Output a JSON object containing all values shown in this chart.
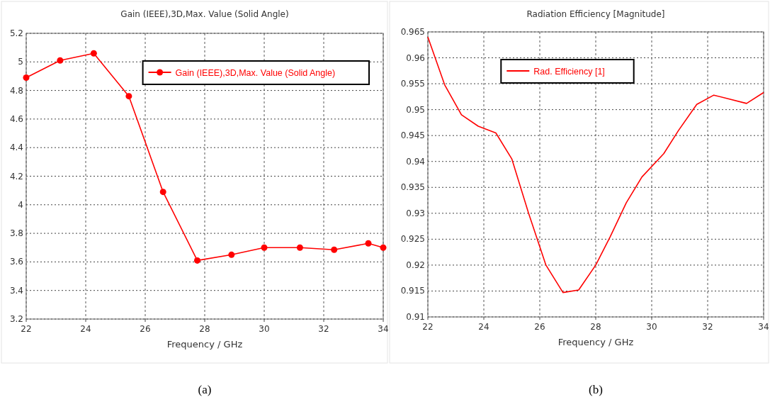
{
  "chart_data": [
    {
      "type": "line",
      "title": "Gain (IEEE),3D,Max. Value (Solid Angle)",
      "xlabel": "Frequency / GHz",
      "annotations": [
        "(a)"
      ],
      "series": [
        {
          "name": "Gain (IEEE),3D,Max. Value (Solid Angle)",
          "color": "#ff0000",
          "x": [
            22,
            23.14,
            24.27,
            25.45,
            26.6,
            27.75,
            28.9,
            30,
            31.2,
            32.35,
            33.5,
            34
          ],
          "values": [
            4.89,
            5.01,
            5.06,
            4.76,
            4.09,
            3.61,
            3.65,
            3.7,
            3.7,
            3.685,
            3.73,
            3.7
          ]
        }
      ],
      "marker": "circle",
      "xlim": [
        22,
        34
      ],
      "xticks": [
        22,
        24,
        26,
        28,
        30,
        32,
        34
      ],
      "ylim": [
        3.2,
        5.2
      ],
      "yticks": [
        3.2,
        3.4,
        3.6,
        3.8,
        4,
        4.2,
        4.4,
        4.6,
        4.8,
        5,
        5.2
      ],
      "grid": true,
      "legend": "top right"
    },
    {
      "type": "line",
      "title": "Radiation Efficiency [Magnitude]",
      "xlabel": "Frequency / GHz",
      "annotations": [
        "(b)"
      ],
      "series": [
        {
          "name": "Rad. Efficiency [1]",
          "color": "#ff0000",
          "x": [
            22,
            22.6,
            23.2,
            23.8,
            24.43,
            25,
            25.6,
            26.22,
            26.83,
            27.39,
            28,
            28.52,
            29.09,
            29.65,
            30.43,
            30.96,
            31.61,
            32.22,
            33.39,
            34
          ],
          "values": [
            0.964,
            0.9548,
            0.949,
            0.9468,
            0.9455,
            0.9405,
            0.93,
            0.92,
            0.9147,
            0.9152,
            0.92,
            0.9255,
            0.932,
            0.937,
            0.9415,
            0.946,
            0.951,
            0.9528,
            0.9512,
            0.9533
          ]
        }
      ],
      "marker": "none",
      "xlim": [
        22,
        34
      ],
      "xticks": [
        22,
        24,
        26,
        28,
        30,
        32,
        34
      ],
      "ylim": [
        0.91,
        0.965
      ],
      "yticks": [
        0.91,
        0.915,
        0.92,
        0.925,
        0.93,
        0.935,
        0.94,
        0.945,
        0.95,
        0.955,
        0.96,
        0.965
      ],
      "grid": true,
      "legend": "top"
    }
  ]
}
